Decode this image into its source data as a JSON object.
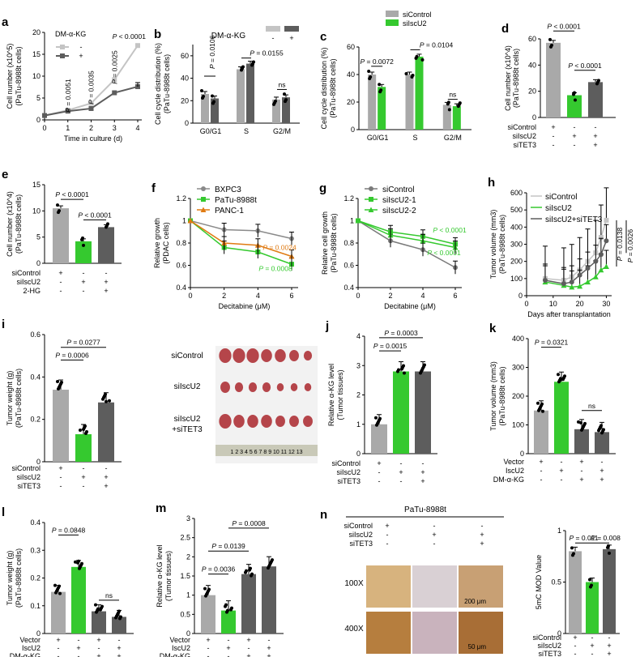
{
  "colors": {
    "grey": "#a9a9a9",
    "dark": "#5d5d5d",
    "green": "#35c92f",
    "orange": "#e07b13",
    "light": "#c4c4c4"
  },
  "a": {
    "letter": "a",
    "legend_title": "DM-α-KG",
    "legend": [
      "-",
      "+"
    ],
    "ylabel": "Cell number (x10^5)",
    "ylabel2": "(PaTu-8988t cells)",
    "xlabel": "Time in culture (d)",
    "x": [
      0,
      1,
      2,
      3,
      4
    ],
    "yticks": [
      0,
      5,
      10,
      15,
      20
    ],
    "xticks": [
      0,
      1,
      2,
      3,
      4
    ],
    "ylim": [
      0,
      20
    ],
    "series": [
      {
        "name": "-",
        "values": [
          1,
          2.2,
          3.8,
          9.2,
          17
        ]
      },
      {
        "name": "+",
        "values": [
          1,
          2,
          2.6,
          6.2,
          7.6
        ]
      }
    ],
    "p": [
      "P = 0.0051",
      "P = 0.0035",
      "P = 0.0025",
      "P < 0.0001"
    ]
  },
  "b": {
    "letter": "b",
    "legend_title": "DM-α-KG",
    "legend": [
      "-",
      "+"
    ],
    "ylabel": "Cell cycle distribution (%)",
    "ylabel2": "(PaTu-8988t cells)",
    "categories": [
      "G0/G1",
      "S",
      "G2/M"
    ],
    "yticks": [
      0,
      20,
      40,
      60
    ],
    "ylim": [
      0,
      70
    ],
    "series": [
      {
        "name": "-",
        "values": [
          26,
          48,
          21
        ]
      },
      {
        "name": "+",
        "values": [
          22,
          53,
          23
        ]
      }
    ],
    "p": [
      "P = 0.0106",
      "P = 0.0155",
      "ns"
    ]
  },
  "c": {
    "letter": "c",
    "legend": [
      "siControl",
      "siIscU2"
    ],
    "ylabel": "Cell cycle distribution (%)",
    "ylabel2": "(PaTu-8988t cells)",
    "categories": [
      "G0/G1",
      "S",
      "G2/M"
    ],
    "yticks": [
      0,
      20,
      40,
      60
    ],
    "ylim": [
      0,
      60
    ],
    "series": [
      {
        "name": "siControl",
        "values": [
          40,
          40,
          18
        ]
      },
      {
        "name": "siIscU2",
        "values": [
          31,
          53,
          17
        ]
      }
    ],
    "p": [
      "P = 0.0072",
      "P = 0.0104",
      "ns"
    ]
  },
  "d": {
    "letter": "d",
    "ylabel": "Cell number (x10^4)",
    "ylabel2": "(PaTu-8988t cells)",
    "yticks": [
      0,
      20,
      40,
      60
    ],
    "ylim": [
      0,
      60
    ],
    "values": [
      57,
      17,
      27
    ],
    "p": [
      "P < 0.0001",
      "P < 0.0001"
    ],
    "rows": [
      {
        "label": "siControl",
        "marks": [
          "+",
          "-",
          "-"
        ]
      },
      {
        "label": "siIscU2",
        "marks": [
          "-",
          "+",
          "+"
        ]
      },
      {
        "label": "siTET3",
        "marks": [
          "-",
          "-",
          "+"
        ]
      }
    ]
  },
  "e": {
    "letter": "e",
    "ylabel": "Cell number (x10^4)",
    "ylabel2": "(PaTu-8988t cells)",
    "yticks": [
      0,
      5,
      10,
      15
    ],
    "ylim": [
      0,
      15
    ],
    "values": [
      10.5,
      4.2,
      6.9
    ],
    "p": [
      "P < 0.0001",
      "P < 0.0001"
    ],
    "rows": [
      {
        "label": "siControl",
        "marks": [
          "+",
          "-",
          "-"
        ]
      },
      {
        "label": "siIscU2",
        "marks": [
          "-",
          "+",
          "+"
        ]
      },
      {
        "label": "2-HG",
        "marks": [
          "-",
          "-",
          "+"
        ]
      }
    ]
  },
  "f": {
    "letter": "f",
    "legend": [
      "BXPC3",
      "PaTu-8988t",
      "PANC-1"
    ],
    "ylabel": "Relative growth",
    "ylabel2": "(PDAC cells)",
    "xlabel": "Decitabine (μM)",
    "x": [
      0,
      2,
      4,
      6
    ],
    "yticks": [
      0.4,
      0.6,
      0.8,
      1.0,
      1.2
    ],
    "xticks": [
      0,
      2,
      4,
      6
    ],
    "ylim": [
      0.4,
      1.2
    ],
    "series": [
      {
        "name": "BXPC3",
        "values": [
          1.0,
          0.92,
          0.91,
          0.84
        ]
      },
      {
        "name": "PaTu-8988t",
        "values": [
          1.0,
          0.76,
          0.72,
          0.61
        ]
      },
      {
        "name": "PANC-1",
        "values": [
          1.0,
          0.8,
          0.78,
          0.68
        ]
      }
    ],
    "p": [
      "P = 0.0024",
      "P = 0.0008"
    ]
  },
  "g": {
    "letter": "g",
    "legend": [
      "siControl",
      "siIscU2-1",
      "siIscU2-2"
    ],
    "ylabel": "Relative cell growth",
    "ylabel2": "(PaTu-8988t cells)",
    "xlabel": "Decitabine (μM)",
    "x": [
      0,
      2,
      4,
      6
    ],
    "yticks": [
      0.4,
      0.6,
      0.8,
      1.0,
      1.2
    ],
    "xticks": [
      0,
      2,
      4,
      6
    ],
    "ylim": [
      0.4,
      1.2
    ],
    "series": [
      {
        "name": "siControl",
        "values": [
          1.0,
          0.82,
          0.74,
          0.58
        ]
      },
      {
        "name": "siIscU2-1",
        "values": [
          1.0,
          0.9,
          0.86,
          0.79
        ]
      },
      {
        "name": "siIscU2-2",
        "values": [
          1.0,
          0.87,
          0.82,
          0.76
        ]
      }
    ],
    "p": [
      "P < 0.0001",
      "P < 0.0001"
    ]
  },
  "h": {
    "letter": "h",
    "legend": [
      "siControl",
      "siIscU2",
      "siIscU2+siTET3"
    ],
    "ylabel": "Tumor volume (mm3)",
    "ylabel2": "(PaTu-8988t cells)",
    "xlabel": "Days after transplantation",
    "x": [
      7,
      14,
      17,
      20,
      23,
      26,
      28,
      30
    ],
    "yticks": [
      0,
      100,
      200,
      300,
      400,
      500,
      600
    ],
    "xticks": [
      0,
      10,
      20,
      30
    ],
    "ylim": [
      0,
      600
    ],
    "series": [
      {
        "name": "siControl",
        "values": [
          100,
          90,
          110,
          150,
          200,
          250,
          340,
          440
        ]
      },
      {
        "name": "siIscU2",
        "values": [
          80,
          60,
          50,
          55,
          80,
          110,
          150,
          170
        ]
      },
      {
        "name": "siIscU2+siTET3",
        "values": [
          90,
          70,
          80,
          120,
          160,
          200,
          240,
          320
        ]
      }
    ],
    "p": [
      "P = 0.0138",
      "P = 0.0026"
    ]
  },
  "i": {
    "letter": "i",
    "ylabel": "Tumor weight (g)",
    "ylabel2": "(PaTu-8988t cells)",
    "yticks": [
      0,
      0.2,
      0.4,
      0.6
    ],
    "ylim": [
      0,
      0.6
    ],
    "values": [
      0.34,
      0.13,
      0.28
    ],
    "p": [
      "P = 0.0277",
      "P = 0.0006"
    ],
    "rows": [
      {
        "label": "siControl",
        "marks": [
          "+",
          "-",
          "-"
        ]
      },
      {
        "label": "siIscU2",
        "marks": [
          "-",
          "+",
          "+"
        ]
      },
      {
        "label": "siTET3",
        "marks": [
          "-",
          "-",
          "+"
        ]
      }
    ],
    "photo_labels": [
      "siControl",
      "siIscU2",
      "siIscU2",
      "+siTET3"
    ],
    "ruler": "1 2 3 4 5 6 7 8 9 10 11 12 13"
  },
  "j": {
    "letter": "j",
    "ylabel": "Relative α-KG level",
    "ylabel2": "(Tumor tissues)",
    "yticks": [
      0,
      1,
      2,
      3,
      4
    ],
    "ylim": [
      0,
      4
    ],
    "values": [
      1.0,
      2.8,
      2.8
    ],
    "p": [
      "P = 0.0003",
      "P = 0.0015"
    ],
    "rows": [
      {
        "label": "siControl",
        "marks": [
          "+",
          "-",
          "-"
        ]
      },
      {
        "label": "siIscU2",
        "marks": [
          "-",
          "+",
          "+"
        ]
      },
      {
        "label": "siTET3",
        "marks": [
          "-",
          "-",
          "+"
        ]
      }
    ]
  },
  "k": {
    "letter": "k",
    "ylabel": "Tumor volume (mm3)",
    "ylabel2": "(PaTu-8988t cells)",
    "yticks": [
      0,
      100,
      200,
      300,
      400
    ],
    "ylim": [
      0,
      400
    ],
    "values": [
      150,
      250,
      85,
      75
    ],
    "p": [
      "P = 0.0321",
      "ns"
    ],
    "rows": [
      {
        "label": "Vector",
        "marks": [
          "+",
          "-",
          "+",
          "-"
        ]
      },
      {
        "label": "IscU2",
        "marks": [
          "-",
          "+",
          "-",
          "+"
        ]
      },
      {
        "label": "DM-α-KG",
        "marks": [
          "-",
          "-",
          "+",
          "+"
        ]
      }
    ]
  },
  "l": {
    "letter": "l",
    "ylabel": "Tumor weight (g)",
    "ylabel2": "(PaTu-8988t cells)",
    "yticks": [
      0,
      0.1,
      0.2,
      0.3,
      0.4
    ],
    "ylim": [
      0,
      0.4
    ],
    "values": [
      0.15,
      0.24,
      0.08,
      0.06
    ],
    "p": [
      "P = 0.0848",
      "ns"
    ],
    "rows": [
      {
        "label": "Vector",
        "marks": [
          "+",
          "-",
          "+",
          "-"
        ]
      },
      {
        "label": "IscU2",
        "marks": [
          "-",
          "+",
          "-",
          "+"
        ]
      },
      {
        "label": "DM-α-KG",
        "marks": [
          "-",
          "-",
          "+",
          "+"
        ]
      }
    ]
  },
  "m": {
    "letter": "m",
    "ylabel": "Relative α-KG level",
    "ylabel2": "(Tumor tissues)",
    "yticks": [
      0.0,
      0.5,
      1.0,
      1.5,
      2.0,
      2.5,
      3.0
    ],
    "ylim": [
      0,
      3
    ],
    "values": [
      1.0,
      0.6,
      1.55,
      1.75
    ],
    "p": [
      "P = 0.0008",
      "P = 0.0139",
      "P = 0.0036"
    ],
    "rows": [
      {
        "label": "Vector",
        "marks": [
          "+",
          "-",
          "+",
          "-"
        ]
      },
      {
        "label": "IscU2",
        "marks": [
          "-",
          "+",
          "-",
          "+"
        ]
      },
      {
        "label": "DM-α-KG",
        "marks": [
          "-",
          "-",
          "+",
          "+"
        ]
      }
    ]
  },
  "n": {
    "letter": "n",
    "title": "PaTu-8988t",
    "mag": [
      "100X",
      "400X"
    ],
    "scale": [
      "200 μm",
      "50 μm"
    ],
    "rows": [
      {
        "label": "siControl",
        "marks": [
          "+",
          "-",
          "-"
        ]
      },
      {
        "label": "siIscU2",
        "marks": [
          "-",
          "+",
          "+"
        ]
      },
      {
        "label": "siTET3",
        "marks": [
          "-",
          "-",
          "+"
        ]
      }
    ],
    "ylabel": "5mC MOD Value",
    "yticks": [
      0.0,
      0.5,
      1.0
    ],
    "ylim": [
      0,
      1.0
    ],
    "values": [
      0.8,
      0.5,
      0.82
    ],
    "p": [
      "P = 0.011",
      "P = 0.008"
    ]
  }
}
